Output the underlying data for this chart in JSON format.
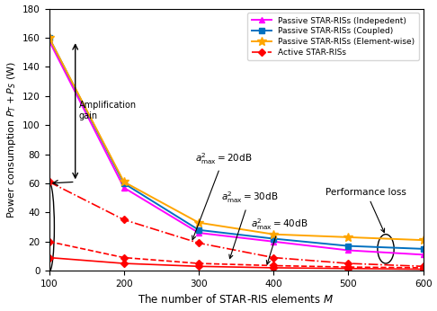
{
  "x": [
    100,
    200,
    300,
    400,
    500,
    600
  ],
  "passive_independent": [
    158,
    57,
    26,
    20,
    14,
    11
  ],
  "passive_coupled": [
    160,
    60,
    28,
    22,
    17,
    15
  ],
  "passive_element_wise": [
    160,
    61,
    33,
    25,
    23,
    21
  ],
  "active_20dB": [
    61,
    35,
    19,
    9,
    5,
    3
  ],
  "active_30dB": [
    20,
    9,
    5,
    3.5,
    2.5,
    2
  ],
  "active_40dB": [
    9,
    5,
    3,
    2,
    1.5,
    1
  ],
  "colors": {
    "passive_independent": "#FF00FF",
    "passive_coupled": "#0070C0",
    "passive_element_wise": "#FFA500",
    "active": "#FF0000"
  },
  "ylim": [
    0,
    180
  ],
  "xlim": [
    100,
    600
  ],
  "yticks": [
    0,
    20,
    40,
    60,
    80,
    100,
    120,
    140,
    160,
    180
  ],
  "xticks": [
    100,
    200,
    300,
    400,
    500,
    600
  ],
  "xlabel": "The number of STAR-RIS elements $M$",
  "ylabel": "Power consumption $P_T + P_S$ (W)",
  "legend_labels": [
    "Passive STAR-RISs (Indepedent)",
    "Passive STAR-RISs (Coupled)",
    "Passive STAR-RISs (Element-wise)",
    "Active STAR-RISs"
  ]
}
